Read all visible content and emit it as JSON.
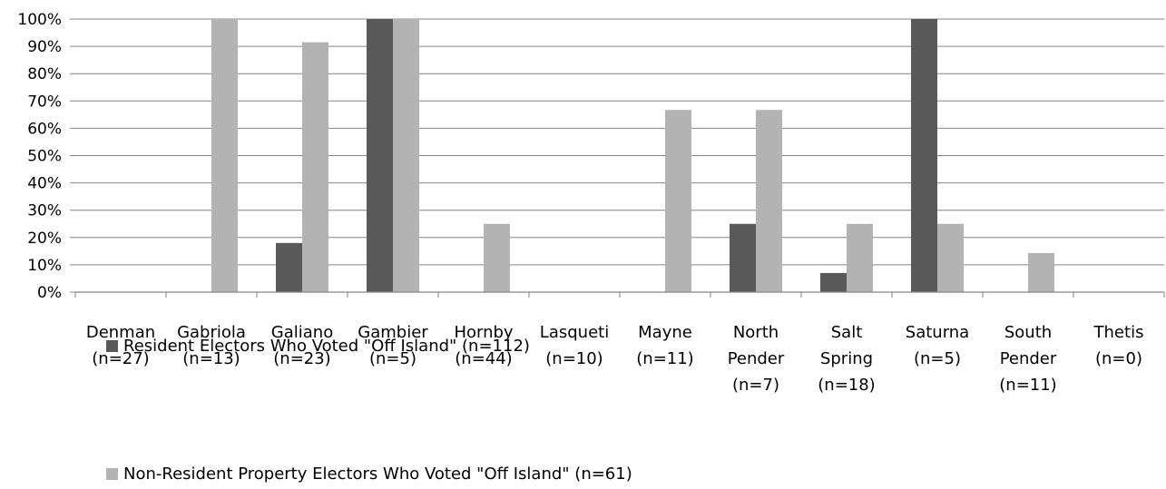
{
  "chart_data": {
    "type": "bar",
    "categories": [
      [
        "Denman",
        "(n=27)"
      ],
      [
        "Gabriola",
        "(n=13)"
      ],
      [
        "Galiano",
        "(n=23)"
      ],
      [
        "Gambier",
        "(n=5)"
      ],
      [
        "Hornby",
        "(n=44)"
      ],
      [
        "Lasqueti",
        "(n=10)"
      ],
      [
        "Mayne",
        "(n=11)"
      ],
      [
        "North",
        "Pender",
        "(n=7)"
      ],
      [
        "Salt",
        "Spring",
        "(n=18)"
      ],
      [
        "Saturna",
        "(n=5)"
      ],
      [
        "South",
        "Pender",
        "(n=11)"
      ],
      [
        "Thetis",
        "(n=0)"
      ]
    ],
    "series": [
      {
        "name": "Resident Electors Who Voted \"Off Island\" (n=112)",
        "color": "#595959",
        "values": [
          0,
          0,
          18,
          100,
          0,
          0,
          0,
          25,
          7,
          100,
          0,
          0
        ]
      },
      {
        "name": "Non-Resident Property Electors Who Voted \"Off Island\" (n=61)",
        "color": "#b3b3b3",
        "values": [
          0,
          100,
          91.5,
          100,
          25,
          0,
          66.7,
          66.7,
          25,
          25,
          14.3,
          0
        ]
      }
    ],
    "yticks": [
      "0%",
      "10%",
      "20%",
      "30%",
      "40%",
      "50%",
      "60%",
      "70%",
      "80%",
      "90%",
      "100%"
    ],
    "ylim": [
      0,
      100
    ],
    "grid": true,
    "legend_position": "bottom-left"
  }
}
